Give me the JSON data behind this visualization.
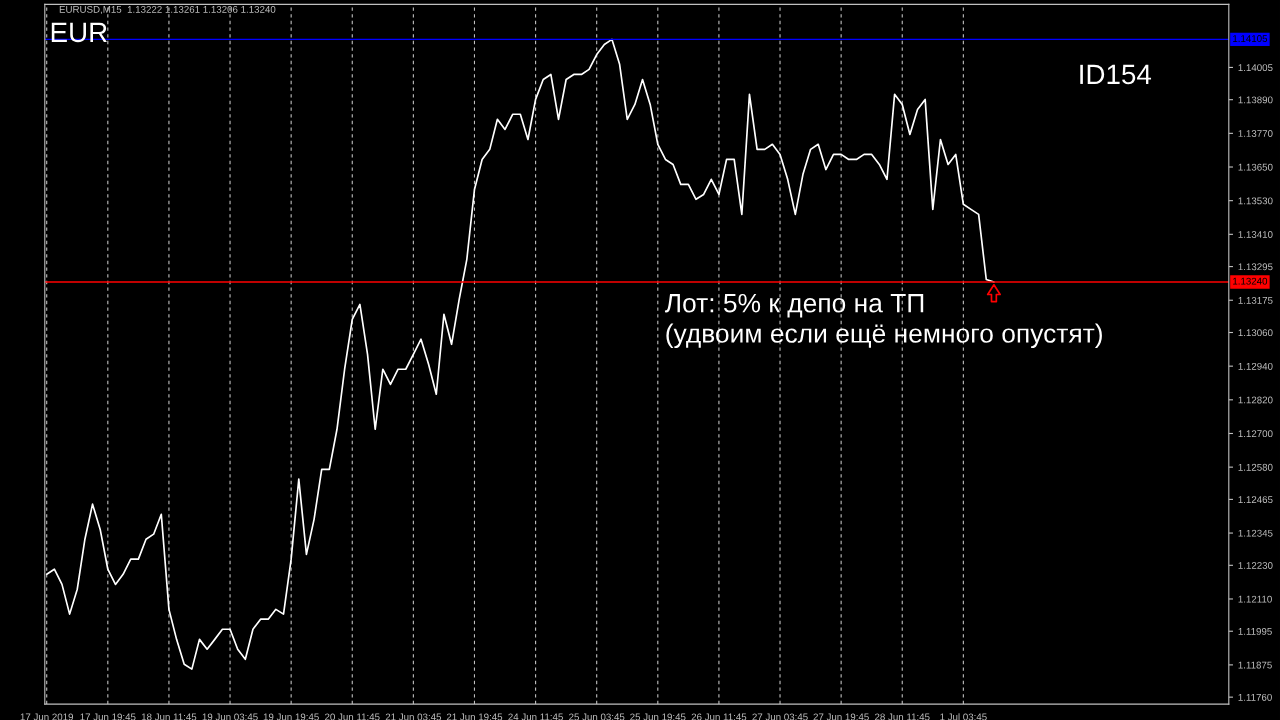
{
  "chart_data": {
    "type": "line",
    "title": "EURUSD,M15  1.13222 1.13261 1.13206 1.13240",
    "annotations": [
      "EUR",
      "ID154",
      {
        "text": "Лот: 5% к депо на ТП\n(удвоим если ещё немного опустят)",
        "y": 1.1324
      }
    ],
    "categories": [
      "17 Jun 2019",
      null,
      null,
      null,
      null,
      null,
      null,
      null,
      "17 Jun 19:45",
      null,
      null,
      null,
      null,
      null,
      null,
      null,
      "18 Jun 11:45",
      null,
      null,
      null,
      null,
      null,
      null,
      null,
      "19 Jun 03:45",
      null,
      null,
      null,
      null,
      null,
      null,
      null,
      "19 Jun 19:45",
      null,
      null,
      null,
      null,
      null,
      null,
      null,
      "20 Jun 11:45",
      null,
      null,
      null,
      null,
      null,
      null,
      null,
      "21 Jun 03:45",
      null,
      null,
      null,
      null,
      null,
      null,
      null,
      "21 Jun 19:45",
      null,
      null,
      null,
      null,
      null,
      null,
      null,
      "24 Jun 11:45",
      null,
      null,
      null,
      null,
      null,
      null,
      null,
      "25 Jun 03:45",
      null,
      null,
      null,
      null,
      null,
      null,
      null,
      "25 Jun 19:45",
      null,
      null,
      null,
      null,
      null,
      null,
      null,
      "26 Jun 11:45",
      null,
      null,
      null,
      null,
      null,
      null,
      null,
      "27 Jun 03:45",
      null,
      null,
      null,
      null,
      null,
      null,
      null,
      "27 Jun 19:45",
      null,
      null,
      null,
      null,
      null,
      null,
      null,
      "28 Jun 11:45",
      null,
      null,
      null,
      null,
      null,
      null,
      null,
      "1 Jul 03:45",
      null,
      null,
      null,
      null,
      null,
      null,
      null,
      null,
      null,
      null,
      null,
      null,
      null,
      null,
      null,
      null,
      null,
      null,
      null,
      null,
      null,
      null,
      null,
      null,
      null,
      null,
      null,
      null,
      null,
      null,
      null,
      null,
      null,
      null
    ],
    "series": [
      {
        "color": "#ffffff",
        "values": [
          1.12198,
          1.12216,
          1.12162,
          1.12056,
          1.12145,
          1.12323,
          1.12448,
          1.12358,
          1.12216,
          1.12162,
          1.12198,
          1.12252,
          1.12252,
          1.12323,
          1.12341,
          1.12412,
          1.12073,
          1.11966,
          1.11877,
          1.1186,
          1.11966,
          1.11931,
          1.11966,
          1.12002,
          1.12002,
          1.11931,
          1.11895,
          1.12002,
          1.12038,
          1.12038,
          1.12073,
          1.12056,
          1.12252,
          1.12537,
          1.12269,
          1.12394,
          1.12572,
          1.12572,
          1.12715,
          1.12929,
          1.13107,
          1.1316,
          1.12982,
          1.12715,
          1.12929,
          1.12875,
          1.12929,
          1.12929,
          1.12982,
          1.13036,
          1.12946,
          1.1284,
          1.13125,
          1.13018,
          1.13178,
          1.13321,
          1.1357,
          1.13677,
          1.13713,
          1.1382,
          1.13784,
          1.13838,
          1.13838,
          1.13748,
          1.13891,
          1.13962,
          1.1398,
          1.1382,
          1.13962,
          1.1398,
          1.1398,
          1.13998,
          1.14051,
          1.14087,
          1.14105,
          1.14016,
          1.1382,
          1.13873,
          1.13962,
          1.13873,
          1.13731,
          1.13677,
          1.13659,
          1.13588,
          1.13588,
          1.13535,
          1.13552,
          1.13606,
          1.13552,
          1.13677,
          1.13677,
          1.13481,
          1.13909,
          1.13713,
          1.13713,
          1.13731,
          1.13695,
          1.13606,
          1.13481,
          1.13624,
          1.13713,
          1.13731,
          1.13641,
          1.13695,
          1.13695,
          1.13677,
          1.13677,
          1.13695,
          1.13695,
          1.13659,
          1.13606,
          1.13909,
          1.13873,
          1.13766,
          1.13855,
          1.13891,
          1.13499,
          1.13748,
          1.13659,
          1.13695,
          1.13517,
          1.13499,
          1.13481,
          1.13249,
          1.1324,
          null,
          null,
          null,
          null,
          null,
          null,
          null,
          null,
          null,
          null,
          null,
          null,
          null,
          null,
          null,
          null,
          null,
          null,
          null,
          null,
          null,
          null,
          null,
          null,
          null,
          null,
          null,
          null,
          null,
          null
        ]
      }
    ],
    "ylim": [
      1.11735,
      1.1423
    ],
    "yticks": [
      {
        "value": 1.1176,
        "label": "1.11760"
      },
      {
        "value": 1.11875,
        "label": "1.11875"
      },
      {
        "value": 1.11995,
        "label": "1.11995"
      },
      {
        "value": 1.1211,
        "label": "1.12110"
      },
      {
        "value": 1.1223,
        "label": "1.12230"
      },
      {
        "value": 1.12345,
        "label": "1.12345"
      },
      {
        "value": 1.12465,
        "label": "1.12465"
      },
      {
        "value": 1.1258,
        "label": "1.12580"
      },
      {
        "value": 1.127,
        "label": "1.12700"
      },
      {
        "value": 1.1282,
        "label": "1.12820"
      },
      {
        "value": 1.1294,
        "label": "1.12940"
      },
      {
        "value": 1.1306,
        "label": "1.13060"
      },
      {
        "value": 1.13175,
        "label": "1.13175"
      },
      {
        "value": 1.13295,
        "label": "1.13295"
      },
      {
        "value": 1.1341,
        "label": "1.13410"
      },
      {
        "value": 1.1353,
        "label": "1.13530"
      },
      {
        "value": 1.1365,
        "label": "1.13650"
      },
      {
        "value": 1.1377,
        "label": "1.13770"
      },
      {
        "value": 1.1389,
        "label": "1.13890"
      },
      {
        "value": 1.14005,
        "label": "1.14005"
      }
    ],
    "ref_lines": [
      {
        "axis": "y",
        "value": 1.14105,
        "label": "1.14105",
        "color": "#0000ff"
      },
      {
        "axis": "y",
        "value": 1.1324,
        "label": "1.13240",
        "color": "#ff0000"
      }
    ],
    "grid": "x",
    "legend": false
  }
}
